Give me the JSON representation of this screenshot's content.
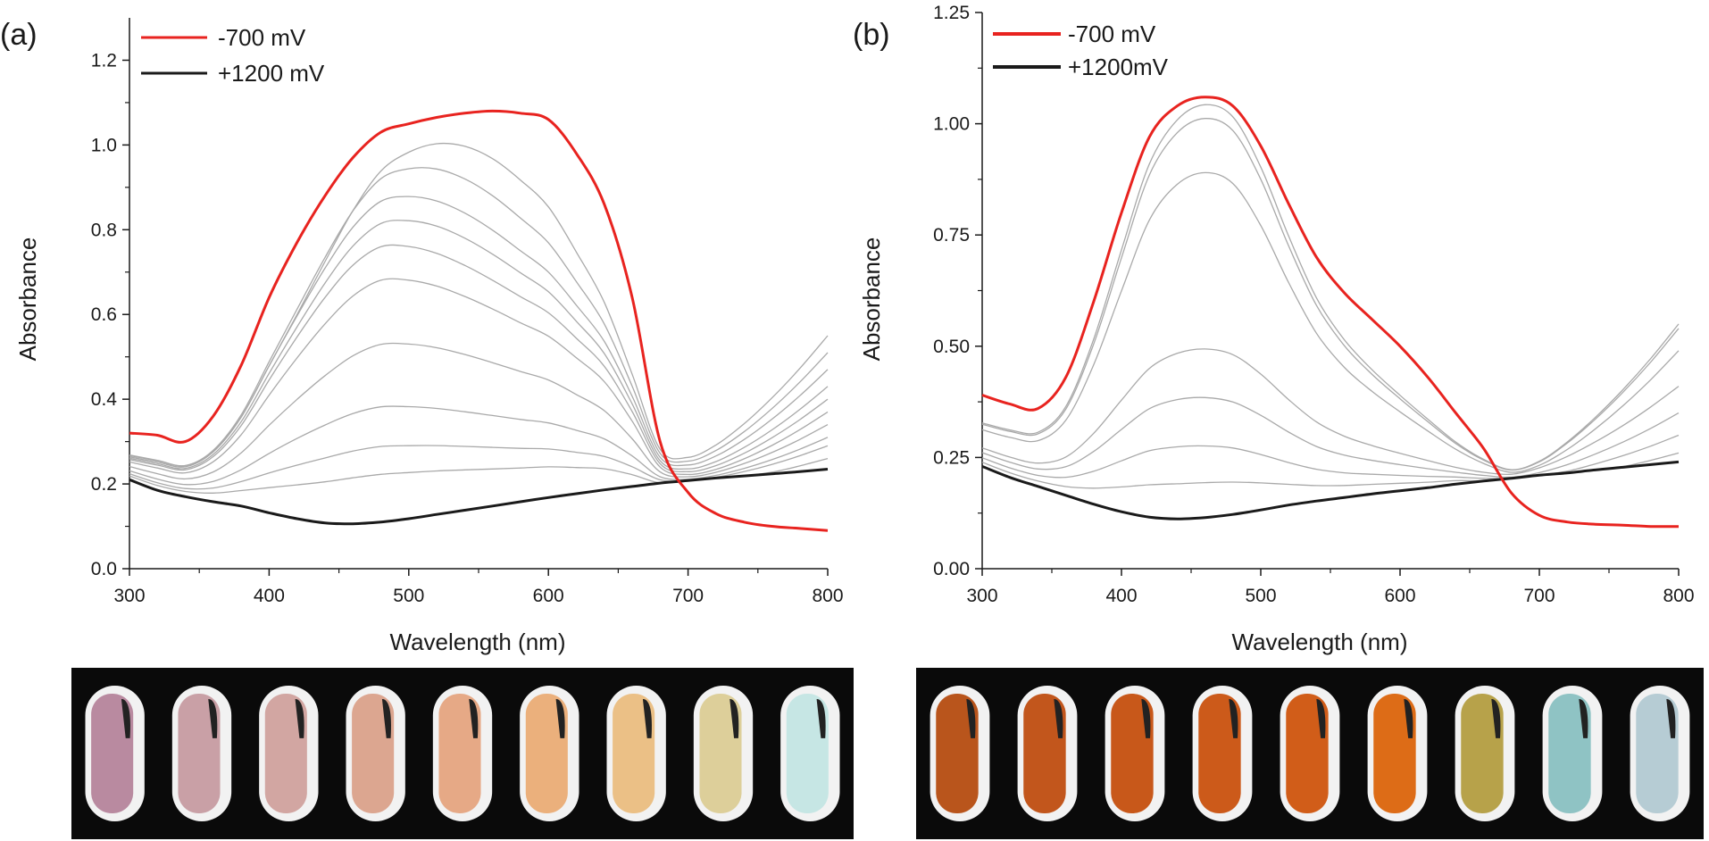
{
  "panels": [
    {
      "label": "(a)",
      "chart_data": {
        "type": "line",
        "xlabel": "Wavelength (nm)",
        "ylabel": "Absorbance",
        "xlim": [
          300,
          800
        ],
        "ylim": [
          0.0,
          1.3
        ],
        "xticks": [
          300,
          400,
          500,
          600,
          700,
          800
        ],
        "xtick_labels": [
          "300",
          "400",
          "500",
          "600",
          "700",
          "800"
        ],
        "yticks": [
          0.0,
          0.2,
          0.4,
          0.6,
          0.8,
          1.0,
          1.2
        ],
        "ytick_labels": [
          "0.0",
          "0.2",
          "0.4",
          "0.6",
          "0.8",
          "1.0",
          "1.2"
        ],
        "legend_position": "top-left",
        "legend": [
          {
            "label": "-700 mV",
            "color": "#e8231f"
          },
          {
            "label": "+1200 mV",
            "color": "#1a1a1a"
          }
        ],
        "reduced_series": {
          "name": "-700 mV",
          "color": "#e8231f",
          "x": [
            300,
            320,
            340,
            360,
            380,
            400,
            420,
            440,
            460,
            480,
            500,
            520,
            540,
            560,
            580,
            600,
            620,
            640,
            660,
            680,
            700,
            720,
            740,
            760,
            780,
            800
          ],
          "y": [
            0.32,
            0.315,
            0.3,
            0.36,
            0.48,
            0.64,
            0.77,
            0.88,
            0.97,
            1.03,
            1.05,
            1.065,
            1.075,
            1.08,
            1.075,
            1.06,
            0.98,
            0.86,
            0.64,
            0.3,
            0.18,
            0.13,
            0.11,
            0.1,
            0.095,
            0.09
          ]
        },
        "oxidized_series": {
          "name": "+1200 mV",
          "color": "#1a1a1a",
          "x": [
            300,
            320,
            340,
            360,
            380,
            400,
            420,
            440,
            460,
            480,
            500,
            520,
            540,
            560,
            580,
            600,
            620,
            640,
            660,
            680,
            700,
            720,
            740,
            760,
            780,
            800
          ],
          "y": [
            0.21,
            0.185,
            0.17,
            0.158,
            0.148,
            0.132,
            0.118,
            0.108,
            0.106,
            0.11,
            0.118,
            0.128,
            0.138,
            0.148,
            0.158,
            0.168,
            0.177,
            0.186,
            0.194,
            0.202,
            0.208,
            0.214,
            0.219,
            0.224,
            0.229,
            0.235
          ]
        },
        "intermediate_peaks": [
          {
            "peak_x": 450,
            "peak_y": 0.21,
            "end_y": 0.26
          },
          {
            "peak_x": 450,
            "peak_y": 0.27,
            "end_y": 0.29
          },
          {
            "peak_x": 455,
            "peak_y": 0.36,
            "end_y": 0.31
          },
          {
            "peak_x": 465,
            "peak_y": 0.51,
            "end_y": 0.34
          },
          {
            "peak_x": 468,
            "peak_y": 0.66,
            "end_y": 0.37
          },
          {
            "peak_x": 470,
            "peak_y": 0.74,
            "end_y": 0.4
          },
          {
            "peak_x": 478,
            "peak_y": 0.81,
            "end_y": 0.43
          },
          {
            "peak_x": 483,
            "peak_y": 0.87,
            "end_y": 0.47
          },
          {
            "peak_x": 495,
            "peak_y": 0.94,
            "end_y": 0.51
          },
          {
            "peak_x": 515,
            "peak_y": 1.0,
            "end_y": 0.55
          }
        ]
      }
    },
    {
      "label": "(b)",
      "chart_data": {
        "type": "line",
        "xlabel": "Wavelength (nm)",
        "ylabel": "Absorbance",
        "xlim": [
          300,
          800
        ],
        "ylim": [
          0.0,
          1.25
        ],
        "xticks": [
          300,
          400,
          500,
          600,
          700,
          800
        ],
        "xtick_labels": [
          "300",
          "400",
          "500",
          "600",
          "700",
          "800"
        ],
        "yticks": [
          0.0,
          0.25,
          0.5,
          0.75,
          1.0,
          1.25
        ],
        "ytick_labels": [
          "0.00",
          "0.25",
          "0.50",
          "0.75",
          "1.00",
          "1.25"
        ],
        "legend_position": "top-left",
        "legend": [
          {
            "label": "-700 mV",
            "color": "#e8231f"
          },
          {
            "label": "+1200mV",
            "color": "#1a1a1a"
          }
        ],
        "reduced_series": {
          "name": "-700 mV",
          "color": "#e8231f",
          "x": [
            300,
            320,
            340,
            360,
            380,
            400,
            420,
            440,
            460,
            480,
            500,
            520,
            540,
            560,
            580,
            600,
            620,
            640,
            660,
            680,
            700,
            720,
            740,
            760,
            780,
            800
          ],
          "y": [
            0.39,
            0.37,
            0.36,
            0.43,
            0.6,
            0.8,
            0.97,
            1.04,
            1.06,
            1.04,
            0.95,
            0.82,
            0.7,
            0.62,
            0.56,
            0.5,
            0.43,
            0.35,
            0.27,
            0.17,
            0.12,
            0.105,
            0.1,
            0.098,
            0.095,
            0.095
          ]
        },
        "oxidized_series": {
          "name": "+1200mV",
          "color": "#1a1a1a",
          "x": [
            300,
            320,
            340,
            360,
            380,
            400,
            420,
            440,
            460,
            480,
            500,
            520,
            540,
            560,
            580,
            600,
            620,
            640,
            660,
            680,
            700,
            720,
            740,
            760,
            780,
            800
          ],
          "y": [
            0.23,
            0.205,
            0.185,
            0.165,
            0.145,
            0.128,
            0.116,
            0.112,
            0.115,
            0.122,
            0.132,
            0.143,
            0.152,
            0.16,
            0.168,
            0.175,
            0.182,
            0.19,
            0.197,
            0.203,
            0.21,
            0.215,
            0.222,
            0.228,
            0.234,
            0.24
          ]
        },
        "intermediate_peaks": [
          {
            "peak_x": 430,
            "peak_y": 0.19,
            "end_y": 0.26
          },
          {
            "peak_x": 430,
            "peak_y": 0.27,
            "end_y": 0.3
          },
          {
            "peak_x": 440,
            "peak_y": 0.38,
            "end_y": 0.35
          },
          {
            "peak_x": 450,
            "peak_y": 0.49,
            "end_y": 0.41
          },
          {
            "peak_x": 460,
            "peak_y": 0.89,
            "end_y": 0.49
          },
          {
            "peak_x": 462,
            "peak_y": 1.01,
            "end_y": 0.54
          },
          {
            "peak_x": 463,
            "peak_y": 1.04,
            "end_y": 0.55
          }
        ]
      }
    }
  ],
  "photo_strips": [
    {
      "colors": [
        "#b98aa0",
        "#c9a0a6",
        "#d2a6a2",
        "#dca690",
        "#e6a986",
        "#ebb07c",
        "#ebc086",
        "#ddcf9a",
        "#c6e6e4"
      ]
    },
    {
      "colors": [
        "#b9551c",
        "#c2561c",
        "#c8581a",
        "#cc5a1a",
        "#d15d19",
        "#dd6c17",
        "#b7a24a",
        "#8fc3c4",
        "#b6ccd4"
      ]
    }
  ]
}
